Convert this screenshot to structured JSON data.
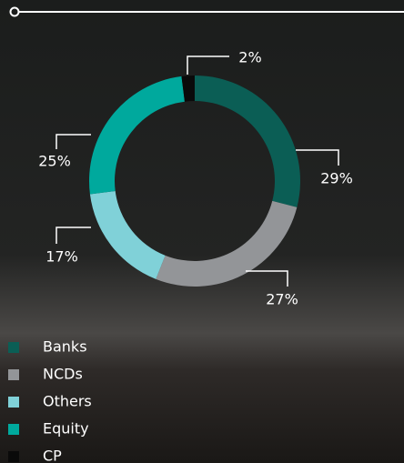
{
  "chart_data": {
    "type": "donut",
    "categories": [
      "Banks",
      "NCDs",
      "Others",
      "Equity",
      "CP"
    ],
    "values": [
      29,
      27,
      17,
      25,
      2
    ],
    "value_labels": [
      "29%",
      "27%",
      "17%",
      "25%",
      "2%"
    ],
    "colors": [
      "#0b5e55",
      "#939598",
      "#80d1d8",
      "#00a99d",
      "#0a0a0a"
    ]
  }
}
